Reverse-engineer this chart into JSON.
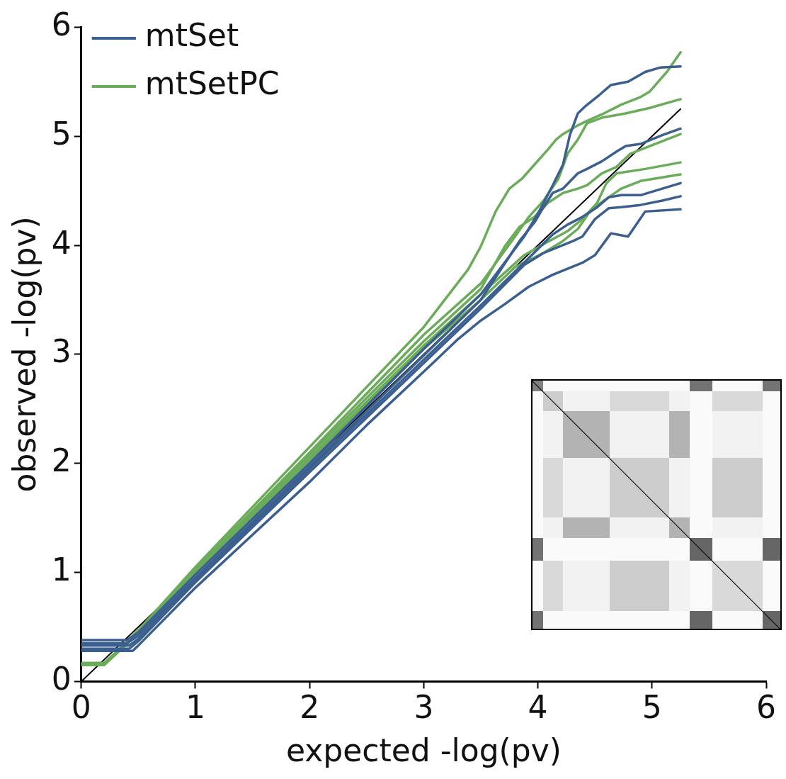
{
  "chart_data": {
    "type": "line",
    "xlabel": "expected -log(pv)",
    "ylabel": "observed -log(pv)",
    "xlim": [
      0,
      6
    ],
    "ylim": [
      0,
      6
    ],
    "xticks": [
      0,
      1,
      2,
      3,
      4,
      5,
      6
    ],
    "yticks": [
      0,
      1,
      2,
      3,
      4,
      5,
      6
    ],
    "grid": false,
    "legend": "top left",
    "marker": "none",
    "line_style": "solid",
    "series": [
      {
        "name": "mtSet",
        "color": "#3b5f8f",
        "x": [
          0,
          0.4,
          0.5,
          1,
          2,
          3,
          3.5,
          3.88,
          4.01,
          4.13,
          4.22,
          4.28,
          4.35,
          4.41,
          4.54,
          4.64,
          4.79,
          4.94,
          5.07,
          5.25
        ],
        "values": [
          0.38,
          0.38,
          0.45,
          0.98,
          2.0,
          3.05,
          3.55,
          4.08,
          4.31,
          4.55,
          4.74,
          5.01,
          5.21,
          5.27,
          5.38,
          5.47,
          5.5,
          5.59,
          5.63,
          5.64
        ]
      },
      {
        "color": "#3b5f8f",
        "x": [
          0,
          0.4,
          0.5,
          1,
          2,
          3,
          3.5,
          3.84,
          3.97,
          4.05,
          4.13,
          4.22,
          4.35,
          4.43,
          4.56,
          4.69,
          4.77,
          4.9,
          5.09,
          5.25
        ],
        "values": [
          0.35,
          0.35,
          0.42,
          0.95,
          1.97,
          2.99,
          3.5,
          4.04,
          4.21,
          4.35,
          4.48,
          4.52,
          4.66,
          4.7,
          4.77,
          4.86,
          4.91,
          4.93,
          5.01,
          5.07
        ]
      },
      {
        "color": "#3b5f8f",
        "x": [
          0,
          0.42,
          0.5,
          1,
          2,
          3,
          3.5,
          4.13,
          4.26,
          4.39,
          4.52,
          4.62,
          4.73,
          4.9,
          5.09,
          5.25
        ],
        "values": [
          0.33,
          0.33,
          0.39,
          0.93,
          1.95,
          2.95,
          3.45,
          4.1,
          4.19,
          4.26,
          4.35,
          4.44,
          4.46,
          4.46,
          4.52,
          4.57
        ]
      },
      {
        "color": "#3b5f8f",
        "x": [
          0,
          0.42,
          0.5,
          1,
          2,
          3,
          3.5,
          3.88,
          4.05,
          4.31,
          4.39,
          4.5,
          4.62,
          4.73,
          4.9,
          5.09,
          5.25
        ],
        "values": [
          0.3,
          0.3,
          0.37,
          0.91,
          1.92,
          2.92,
          3.42,
          3.82,
          3.93,
          4.04,
          4.08,
          4.24,
          4.34,
          4.35,
          4.37,
          4.41,
          4.45
        ]
      },
      {
        "color": "#3b5f8f",
        "x": [
          0,
          0.45,
          0.5,
          1,
          2,
          2.5,
          3.07,
          3.29,
          3.5,
          3.71,
          3.92,
          4.13,
          4.39,
          4.5,
          4.64,
          4.79,
          4.94,
          5.25
        ],
        "values": [
          0.28,
          0.28,
          0.33,
          0.86,
          1.83,
          2.35,
          2.91,
          3.13,
          3.31,
          3.46,
          3.62,
          3.73,
          3.84,
          3.91,
          4.11,
          4.08,
          4.31,
          4.33
        ]
      },
      {
        "name": "mtSetPC",
        "color": "#6aac5a",
        "x": [
          0,
          0.2,
          0.5,
          1,
          2,
          3,
          3.39,
          3.5,
          3.63,
          3.75,
          3.86,
          3.97,
          4.09,
          4.16,
          4.22,
          4.35,
          4.43,
          4.56,
          4.73,
          4.9,
          4.98,
          5.13,
          5.25
        ],
        "values": [
          0.15,
          0.15,
          0.47,
          1.05,
          2.15,
          3.25,
          3.78,
          3.99,
          4.31,
          4.52,
          4.61,
          4.74,
          4.88,
          4.97,
          5.02,
          5.1,
          5.14,
          5.2,
          5.29,
          5.36,
          5.41,
          5.59,
          5.77
        ]
      },
      {
        "color": "#6aac5a",
        "x": [
          0,
          0.2,
          0.5,
          1,
          2,
          3,
          3.5,
          3.8,
          3.92,
          4.05,
          4.18,
          4.26,
          4.35,
          4.43,
          4.56,
          4.77,
          4.98,
          5.25
        ],
        "values": [
          0.16,
          0.16,
          0.46,
          1.03,
          2.1,
          3.18,
          3.65,
          4.08,
          4.26,
          4.41,
          4.61,
          4.84,
          4.97,
          5.12,
          5.17,
          5.21,
          5.26,
          5.34
        ]
      },
      {
        "color": "#6aac5a",
        "x": [
          0,
          0.2,
          0.5,
          1,
          2,
          3,
          3.5,
          3.71,
          3.84,
          3.97,
          4.09,
          4.22,
          4.35,
          4.43,
          4.56,
          4.69,
          4.81,
          5.25
        ],
        "values": [
          0.17,
          0.17,
          0.45,
          1.02,
          2.08,
          3.12,
          3.6,
          3.99,
          4.17,
          4.26,
          4.39,
          4.48,
          4.52,
          4.55,
          4.66,
          4.72,
          4.84,
          5.02
        ]
      },
      {
        "color": "#6aac5a",
        "x": [
          0,
          0.2,
          0.5,
          1,
          2,
          3,
          3.5,
          3.88,
          4.05,
          4.26,
          4.39,
          4.52,
          4.6,
          4.69,
          4.94,
          5.25
        ],
        "values": [
          0.15,
          0.15,
          0.44,
          1.0,
          2.05,
          3.08,
          3.55,
          3.91,
          4.01,
          4.13,
          4.24,
          4.39,
          4.57,
          4.66,
          4.7,
          4.76
        ]
      },
      {
        "color": "#6aac5a",
        "x": [
          0,
          0.2,
          0.5,
          1,
          2,
          3,
          3.5,
          3.8,
          4.05,
          4.22,
          4.35,
          4.47,
          4.62,
          4.73,
          4.9,
          5.25
        ],
        "values": [
          0.16,
          0.16,
          0.44,
          1.0,
          2.03,
          3.05,
          3.5,
          3.8,
          3.93,
          4.04,
          4.15,
          4.33,
          4.44,
          4.52,
          4.59,
          4.65
        ]
      },
      {
        "color": "#000000",
        "x": [
          0,
          5.25
        ],
        "values": [
          0,
          5.25
        ]
      }
    ]
  }
}
